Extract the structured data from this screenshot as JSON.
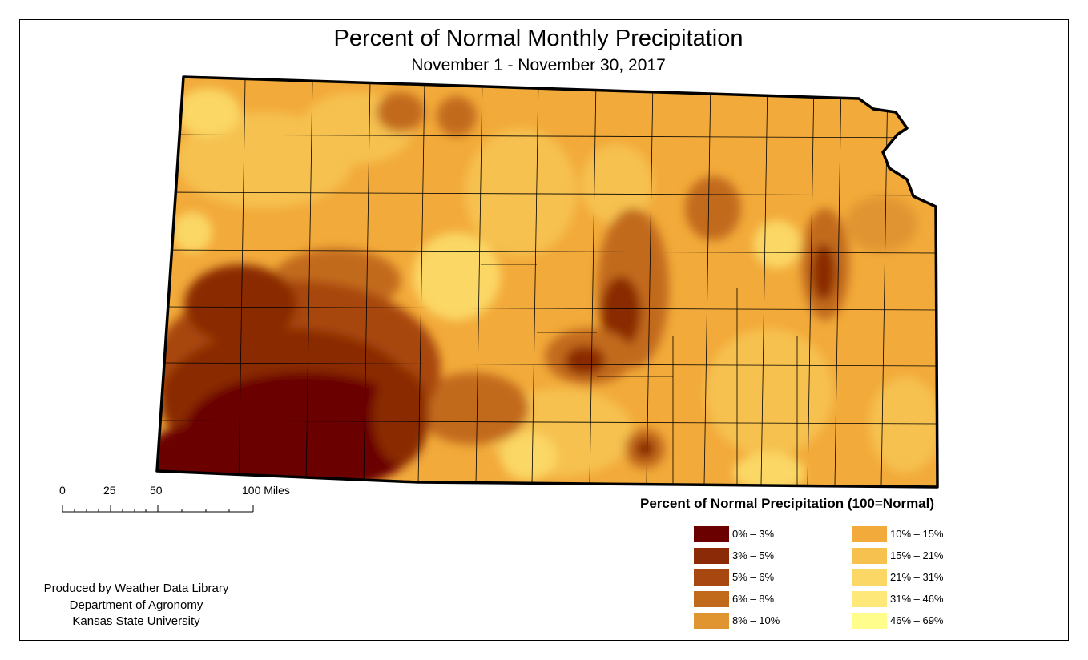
{
  "map": {
    "title": "Percent of Normal Monthly Precipitation",
    "subtitle": "November 1 - November 30, 2017",
    "region": "Kansas"
  },
  "scale": {
    "labels": [
      "0",
      "25",
      "50",
      "100 Miles"
    ]
  },
  "legend": {
    "title": "Percent of Normal Precipitation (100=Normal)",
    "classes": [
      {
        "label": "0% – 3%",
        "color": "#6b0000"
      },
      {
        "label": "3% – 5%",
        "color": "#8a2a06"
      },
      {
        "label": "5% – 6%",
        "color": "#a8470f"
      },
      {
        "label": "6% – 8%",
        "color": "#c26a1c"
      },
      {
        "label": "8% – 10%",
        "color": "#e19530"
      },
      {
        "label": "10% – 15%",
        "color": "#f2aa3a"
      },
      {
        "label": "15% – 21%",
        "color": "#f6c14f"
      },
      {
        "label": "21% – 31%",
        "color": "#fbd765"
      },
      {
        "label": "31% – 46%",
        "color": "#fde879"
      },
      {
        "label": "46% – 69%",
        "color": "#fffe8c"
      }
    ]
  },
  "credit": {
    "line1": "Produced by Weather Data Library",
    "line2": "Department of Agronomy",
    "line3": "Kansas State University"
  }
}
